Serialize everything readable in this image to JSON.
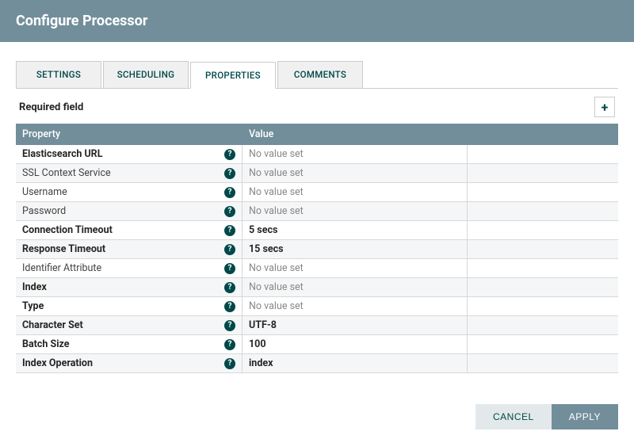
{
  "dialog": {
    "title": "Configure Processor"
  },
  "tabs": [
    {
      "label": "SETTINGS",
      "active": false
    },
    {
      "label": "SCHEDULING",
      "active": false
    },
    {
      "label": "PROPERTIES",
      "active": true
    },
    {
      "label": "COMMENTS",
      "active": false
    }
  ],
  "section_label": "Required field",
  "table": {
    "header_property": "Property",
    "header_value": "Value",
    "no_value_text": "No value set",
    "rows": [
      {
        "name": "Elasticsearch URL",
        "required": true,
        "value": null
      },
      {
        "name": "SSL Context Service",
        "required": false,
        "value": null
      },
      {
        "name": "Username",
        "required": false,
        "value": null
      },
      {
        "name": "Password",
        "required": false,
        "value": null
      },
      {
        "name": "Connection Timeout",
        "required": true,
        "value": "5 secs"
      },
      {
        "name": "Response Timeout",
        "required": true,
        "value": "15 secs"
      },
      {
        "name": "Identifier Attribute",
        "required": false,
        "value": null
      },
      {
        "name": "Index",
        "required": true,
        "value": null
      },
      {
        "name": "Type",
        "required": true,
        "value": null
      },
      {
        "name": "Character Set",
        "required": true,
        "value": "UTF-8"
      },
      {
        "name": "Batch Size",
        "required": true,
        "value": "100"
      },
      {
        "name": "Index Operation",
        "required": true,
        "value": "index"
      }
    ]
  },
  "buttons": {
    "cancel": "CANCEL",
    "apply": "APPLY"
  },
  "colors": {
    "header_bg": "#728e9b",
    "accent_text": "#004849",
    "alt_row": "#f4f6f7",
    "border": "#d8d8d8"
  }
}
